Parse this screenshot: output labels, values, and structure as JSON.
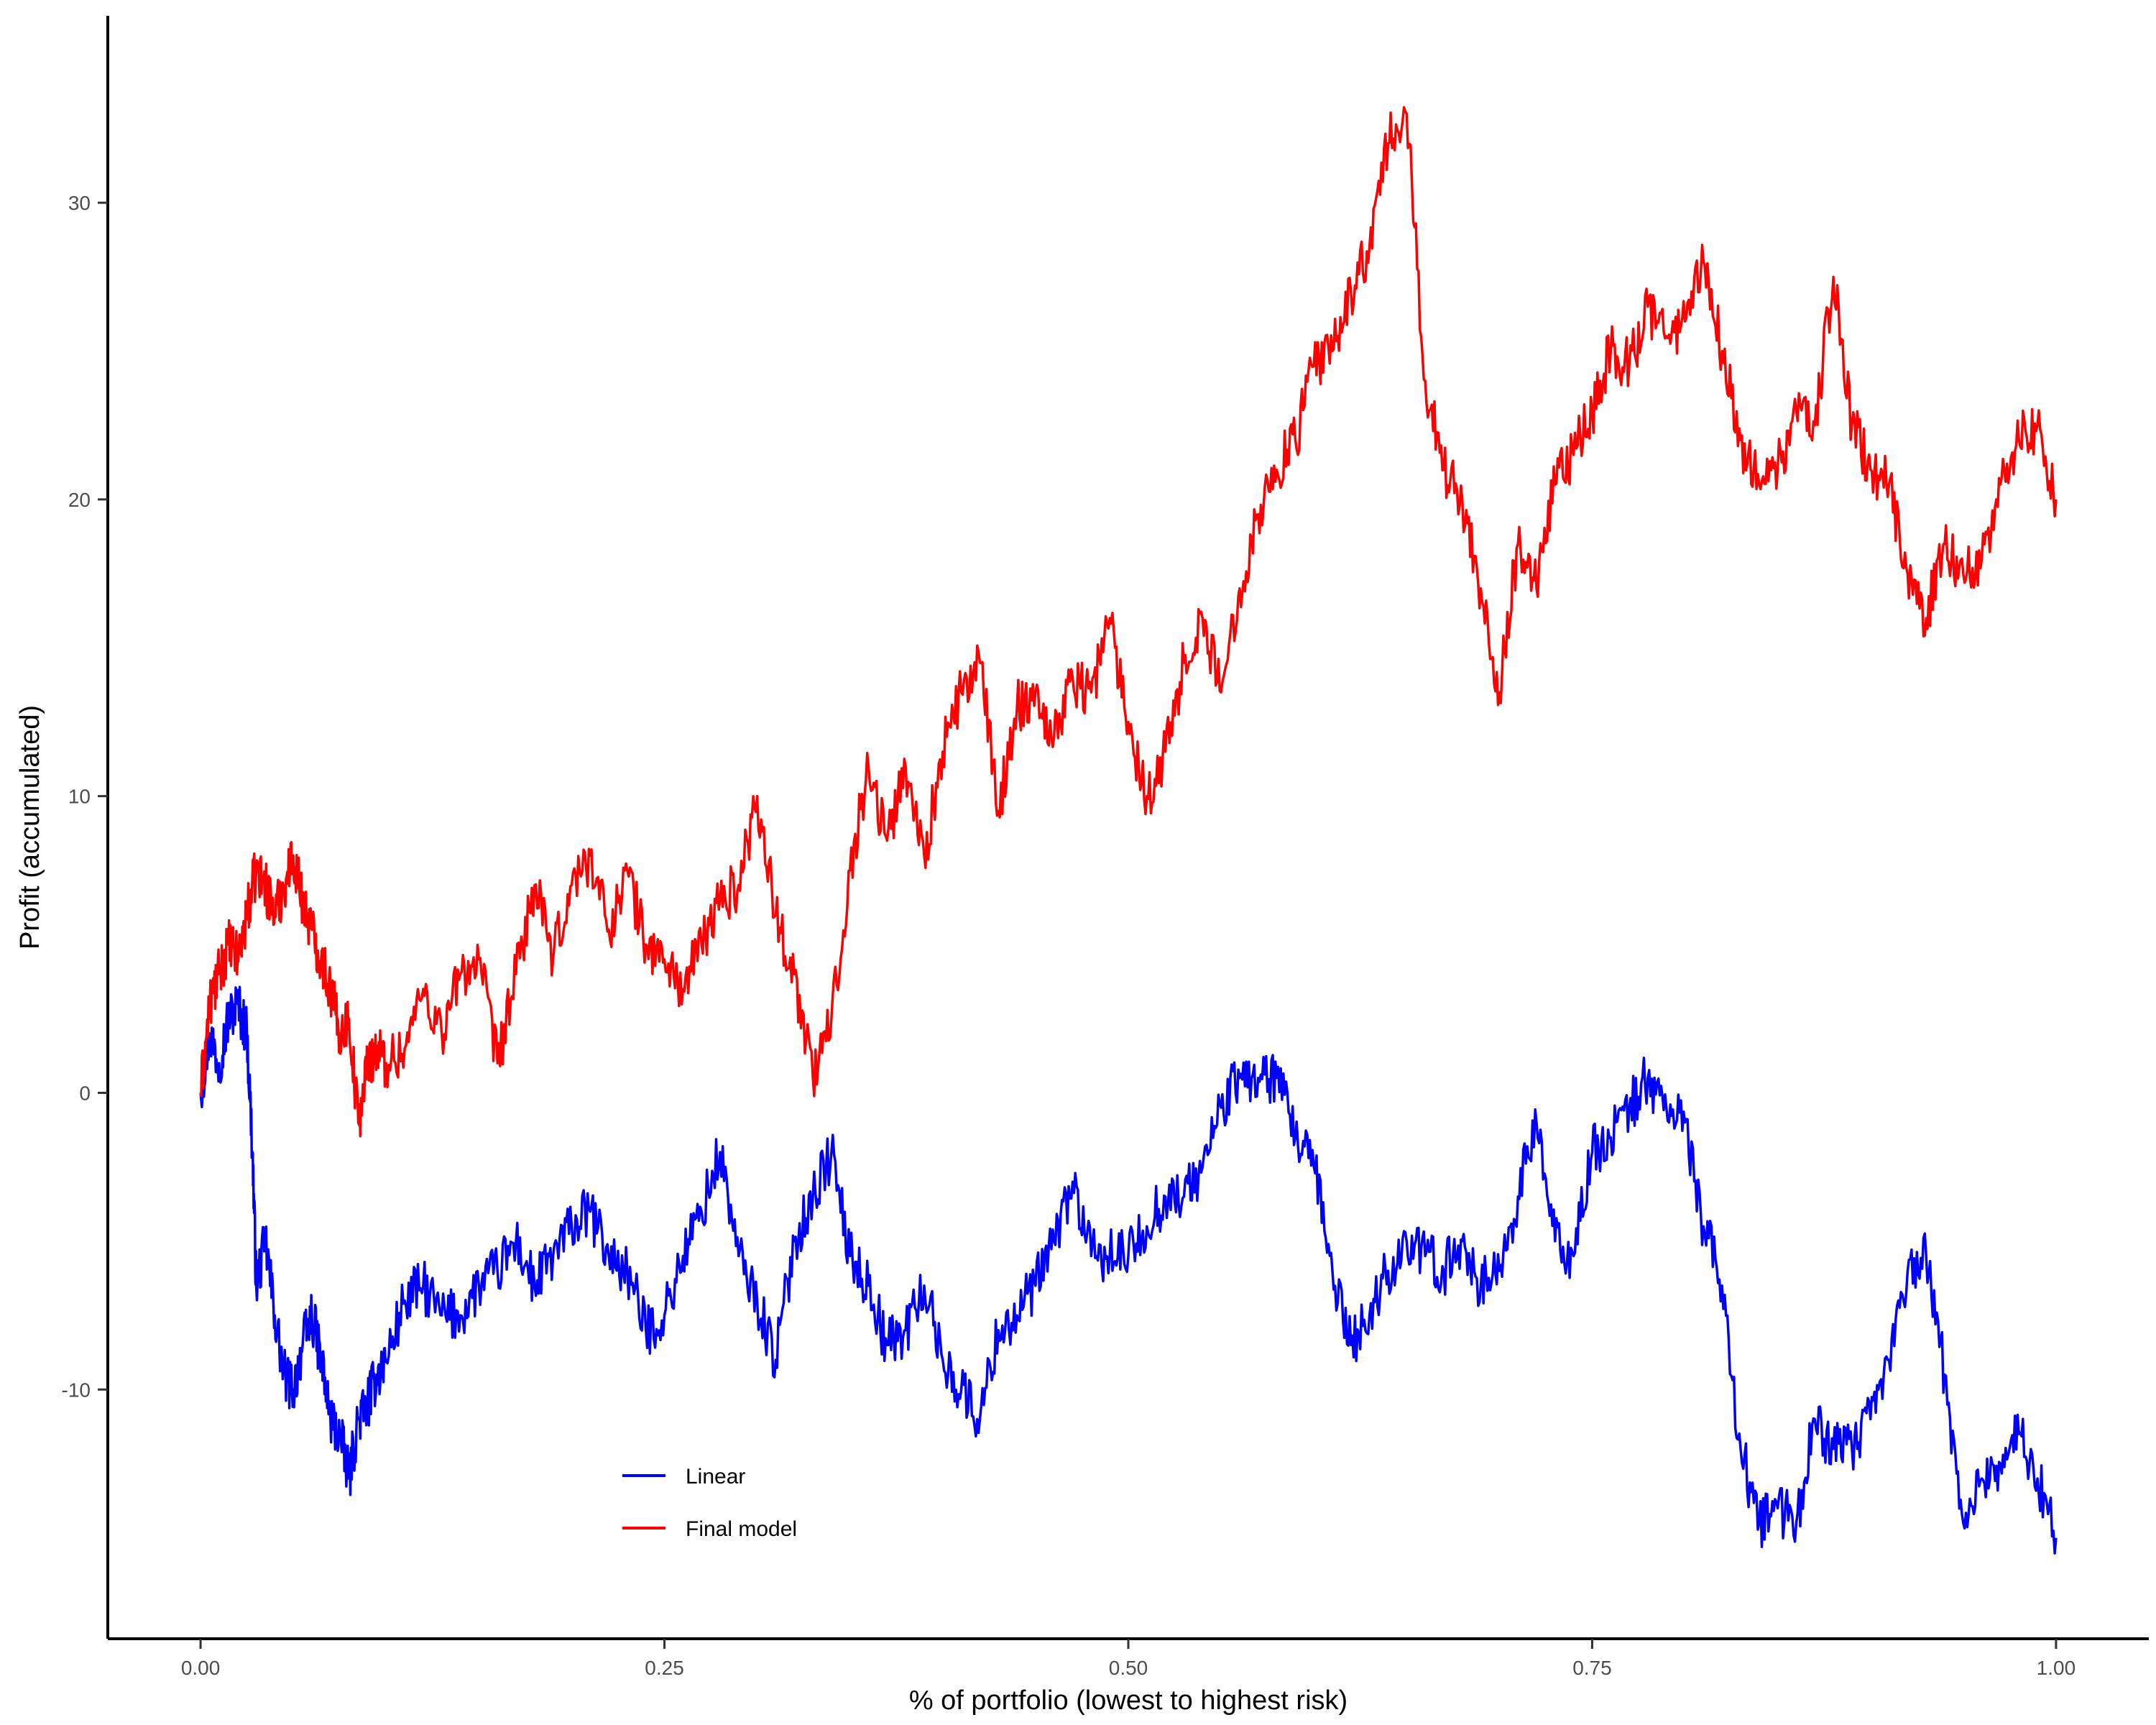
{
  "chart_data": {
    "type": "line",
    "title": "",
    "xlabel": "% of portfolio (lowest to highest risk)",
    "ylabel": "Profit (accumulated)",
    "xlim": [
      -0.05,
      1.05
    ],
    "ylim": [
      -18.4,
      36.3
    ],
    "x_ticks": [
      0.0,
      0.25,
      0.5,
      0.75,
      1.0
    ],
    "x_tick_labels": [
      "0.00",
      "0.25",
      "0.50",
      "0.75",
      "1.00"
    ],
    "y_ticks": [
      -10,
      0,
      10,
      20,
      30
    ],
    "y_tick_labels": [
      "-10",
      "0",
      "10",
      "20",
      "30"
    ],
    "grid": false,
    "legend": {
      "position": "bottom-left-inside"
    },
    "series": [
      {
        "name": "Linear",
        "color": "#0000ff",
        "x": [
          0.0,
          0.005,
          0.01,
          0.015,
          0.02,
          0.025,
          0.028,
          0.03,
          0.035,
          0.04,
          0.045,
          0.05,
          0.055,
          0.06,
          0.065,
          0.07,
          0.075,
          0.08,
          0.085,
          0.09,
          0.095,
          0.1,
          0.11,
          0.12,
          0.13,
          0.14,
          0.15,
          0.16,
          0.17,
          0.18,
          0.19,
          0.2,
          0.21,
          0.22,
          0.23,
          0.24,
          0.25,
          0.26,
          0.27,
          0.28,
          0.29,
          0.3,
          0.31,
          0.32,
          0.33,
          0.34,
          0.35,
          0.36,
          0.37,
          0.38,
          0.39,
          0.4,
          0.41,
          0.42,
          0.43,
          0.44,
          0.45,
          0.46,
          0.47,
          0.48,
          0.49,
          0.5,
          0.51,
          0.52,
          0.53,
          0.54,
          0.55,
          0.56,
          0.57,
          0.58,
          0.59,
          0.6,
          0.61,
          0.62,
          0.63,
          0.64,
          0.65,
          0.66,
          0.67,
          0.68,
          0.69,
          0.7,
          0.71,
          0.72,
          0.73,
          0.74,
          0.75,
          0.76,
          0.77,
          0.78,
          0.79,
          0.8,
          0.81,
          0.82,
          0.83,
          0.84,
          0.85,
          0.86,
          0.87,
          0.88,
          0.89,
          0.9,
          0.91,
          0.92,
          0.93,
          0.94,
          0.95,
          0.96,
          0.97,
          0.98,
          0.99,
          1.0
        ],
        "y": [
          0.0,
          2.0,
          1.0,
          2.5,
          3.0,
          2.0,
          -2.0,
          -6.5,
          -5.0,
          -7.5,
          -9.5,
          -10.0,
          -8.5,
          -7.5,
          -9.0,
          -11.0,
          -11.5,
          -13.0,
          -11.0,
          -10.5,
          -9.5,
          -9.0,
          -7.0,
          -6.5,
          -7.5,
          -7.5,
          -6.5,
          -6.0,
          -5.0,
          -6.5,
          -5.5,
          -4.5,
          -4.0,
          -5.5,
          -6.0,
          -8.0,
          -7.5,
          -5.5,
          -4.0,
          -2.0,
          -5.5,
          -7.0,
          -9.0,
          -5.0,
          -3.5,
          -2.0,
          -5.5,
          -6.5,
          -8.5,
          -8.0,
          -6.5,
          -9.0,
          -10.0,
          -11.0,
          -8.0,
          -7.5,
          -6.5,
          -5.0,
          -3.0,
          -5.5,
          -5.5,
          -5.5,
          -4.5,
          -3.5,
          -3.5,
          -2.5,
          -0.5,
          0.5,
          0.5,
          0.5,
          -1.5,
          -2.5,
          -6.0,
          -8.5,
          -7.5,
          -6.0,
          -5.0,
          -5.5,
          -6.0,
          -5.0,
          -6.5,
          -6.0,
          -3.5,
          -1.0,
          -5.0,
          -5.5,
          -2.0,
          -1.5,
          -0.5,
          0.5,
          -0.5,
          -1.0,
          -4.5,
          -6.5,
          -12.0,
          -14.5,
          -14.0,
          -14.5,
          -11.0,
          -12.0,
          -12.0,
          -11.0,
          -9.0,
          -6.0,
          -5.5,
          -9.5,
          -14.5,
          -13.0,
          -12.5,
          -11.5,
          -13.0,
          -15.0
        ]
      },
      {
        "name": "Final model",
        "color": "#ff0000",
        "x": [
          0.0,
          0.005,
          0.01,
          0.015,
          0.02,
          0.025,
          0.03,
          0.035,
          0.04,
          0.045,
          0.05,
          0.055,
          0.06,
          0.065,
          0.07,
          0.075,
          0.08,
          0.085,
          0.09,
          0.095,
          0.1,
          0.11,
          0.12,
          0.13,
          0.14,
          0.15,
          0.16,
          0.17,
          0.18,
          0.19,
          0.2,
          0.21,
          0.22,
          0.23,
          0.24,
          0.25,
          0.26,
          0.27,
          0.28,
          0.29,
          0.3,
          0.31,
          0.32,
          0.33,
          0.34,
          0.35,
          0.36,
          0.37,
          0.38,
          0.39,
          0.4,
          0.41,
          0.42,
          0.43,
          0.44,
          0.45,
          0.46,
          0.47,
          0.48,
          0.49,
          0.5,
          0.51,
          0.52,
          0.53,
          0.54,
          0.55,
          0.56,
          0.57,
          0.58,
          0.59,
          0.6,
          0.61,
          0.62,
          0.63,
          0.64,
          0.65,
          0.66,
          0.67,
          0.68,
          0.69,
          0.7,
          0.71,
          0.72,
          0.73,
          0.74,
          0.75,
          0.76,
          0.77,
          0.78,
          0.79,
          0.8,
          0.81,
          0.82,
          0.83,
          0.84,
          0.85,
          0.86,
          0.87,
          0.88,
          0.89,
          0.9,
          0.91,
          0.92,
          0.93,
          0.94,
          0.95,
          0.96,
          0.97,
          0.98,
          0.99,
          1.0
        ],
        "y": [
          0.0,
          3.0,
          4.0,
          5.0,
          4.5,
          6.0,
          7.5,
          7.0,
          6.0,
          7.0,
          8.0,
          6.5,
          5.5,
          4.5,
          3.5,
          2.0,
          2.5,
          -1.0,
          1.0,
          1.5,
          1.0,
          1.5,
          3.5,
          2.0,
          4.0,
          4.5,
          1.0,
          4.0,
          7.0,
          4.5,
          7.0,
          8.0,
          5.5,
          7.5,
          5.0,
          4.5,
          3.5,
          5.0,
          6.5,
          7.0,
          10.0,
          6.0,
          4.0,
          0.5,
          2.5,
          7.5,
          11.0,
          8.5,
          11.0,
          8.0,
          11.5,
          13.5,
          14.5,
          9.5,
          13.0,
          13.5,
          12.0,
          14.0,
          13.5,
          16.0,
          12.5,
          10.0,
          11.5,
          14.5,
          16.0,
          13.5,
          17.0,
          19.5,
          21.0,
          22.0,
          24.5,
          25.0,
          27.0,
          28.5,
          32.0,
          33.0,
          24.0,
          21.0,
          20.0,
          17.0,
          13.5,
          18.5,
          17.0,
          20.5,
          21.5,
          23.0,
          25.0,
          24.5,
          26.5,
          25.5,
          26.0,
          28.0,
          25.0,
          22.0,
          20.5,
          21.0,
          23.0,
          22.5,
          27.5,
          22.5,
          21.0,
          20.5,
          17.5,
          16.0,
          18.5,
          17.5,
          18.0,
          20.5,
          22.0,
          22.5,
          20.0
        ]
      }
    ]
  }
}
